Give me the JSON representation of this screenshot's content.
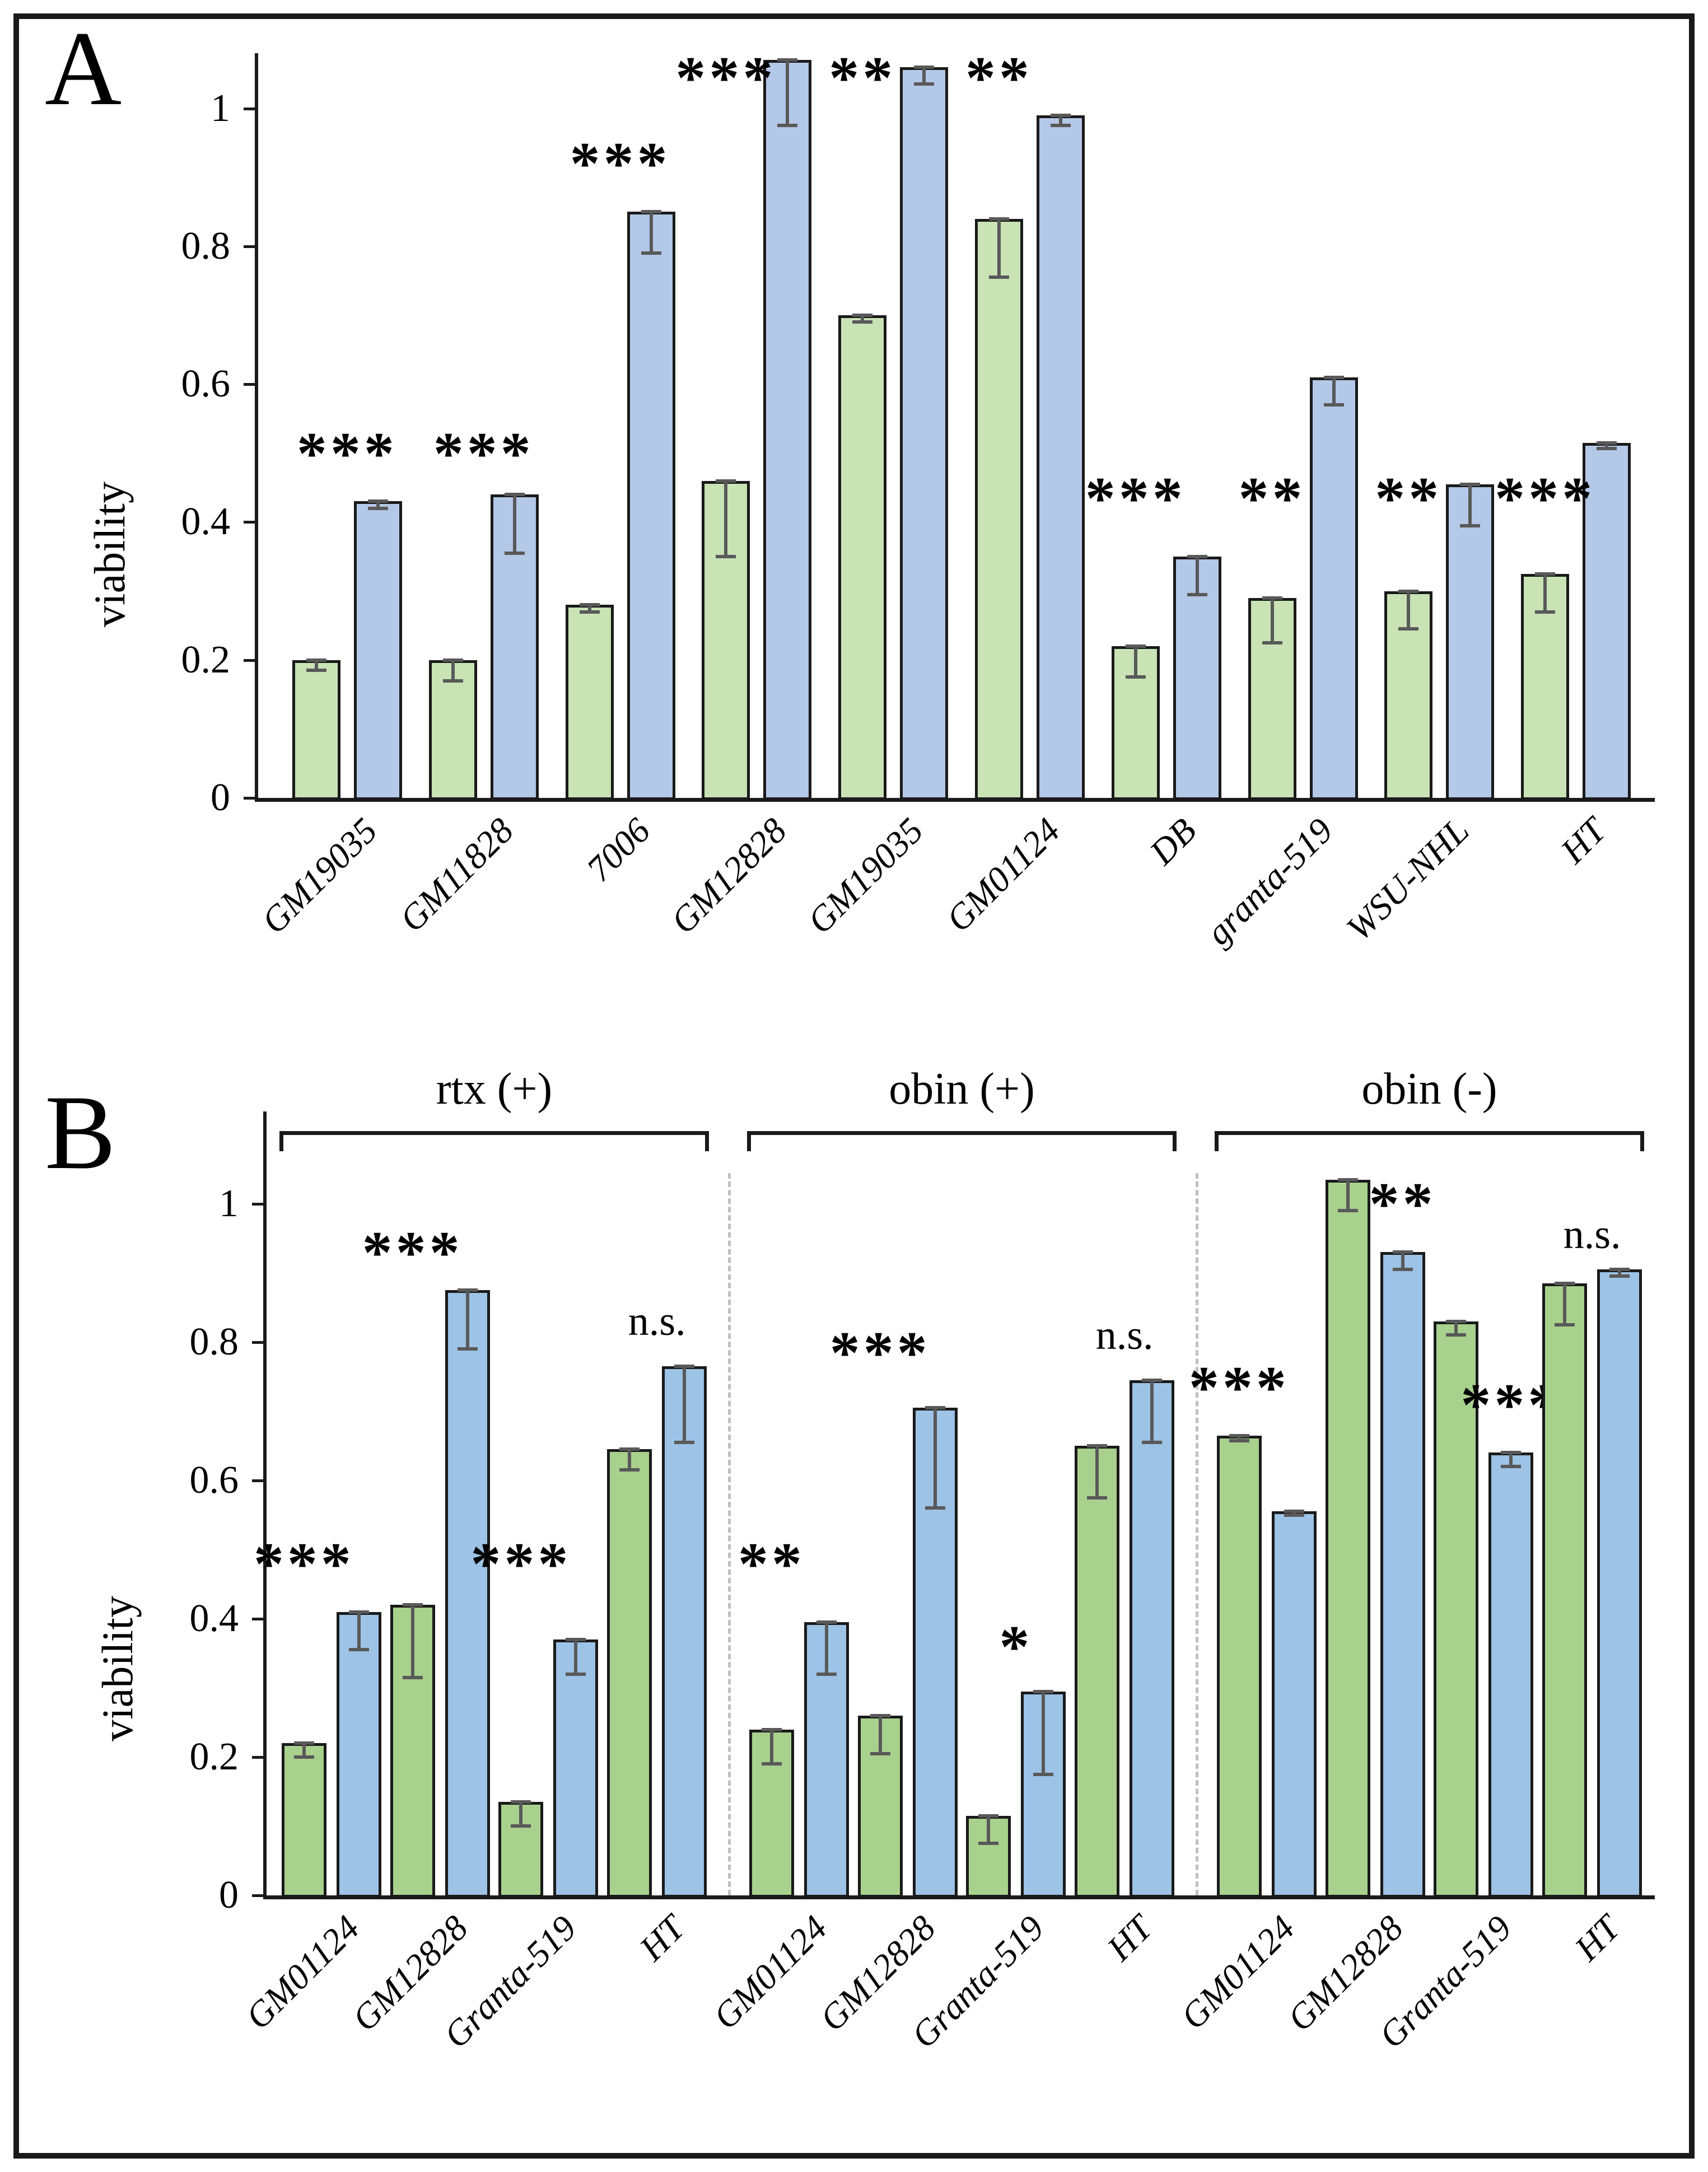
{
  "figure": {
    "panel_a_letter": "A",
    "panel_b_letter": "B",
    "y_axis_label": "viability"
  },
  "chart_data": [
    {
      "type": "bar",
      "panel_label": "A",
      "title": "",
      "xlabel": "",
      "ylabel": "viability",
      "ylim": [
        0,
        1.08
      ],
      "grid": false,
      "legend": "none",
      "yticks": [
        {
          "value": 0,
          "label": "0"
        },
        {
          "value": 0.2,
          "label": "0.2"
        },
        {
          "value": 0.4,
          "label": "0.4"
        },
        {
          "value": 0.6,
          "label": "0.6"
        },
        {
          "value": 0.8,
          "label": "0.8"
        },
        {
          "value": 1,
          "label": "1"
        }
      ],
      "series": [
        {
          "name": "green",
          "color": "#c9e3b5"
        },
        {
          "name": "blue",
          "color": "#b4c8e8"
        }
      ],
      "bar_border_color": "#1a1a1a",
      "error_bar_color": "#595959",
      "groups": [
        {
          "label": "",
          "bars": [
            {
              "category": "GM19035",
              "green": 0.2,
              "green_err": 0.015,
              "blue": 0.43,
              "blue_err": 0.01,
              "sig": "***",
              "sig_y": 0.455,
              "sig_anchor": "pair"
            },
            {
              "category": "GM11828",
              "green": 0.2,
              "green_err": 0.03,
              "blue": 0.44,
              "blue_err": 0.085,
              "sig": "***",
              "sig_y": 0.455,
              "sig_anchor": "pair"
            },
            {
              "category": "7006",
              "green": 0.28,
              "green_err": 0.01,
              "blue": 0.85,
              "blue_err": 0.06,
              "sig": "***",
              "sig_y": 0.875,
              "sig_anchor": "pair"
            },
            {
              "category": "GM12828",
              "green": 0.46,
              "green_err": 0.11,
              "blue": 1.07,
              "blue_err": 0.095,
              "sig": "***",
              "sig_y": 1.0,
              "sig_anchor": "green"
            },
            {
              "category": "GM19035",
              "green": 0.7,
              "green_err": 0.01,
              "blue": 1.06,
              "blue_err": 0.025,
              "sig": "**",
              "sig_y": 1.0,
              "sig_anchor": "green"
            },
            {
              "category": "GM01124",
              "green": 0.84,
              "green_err": 0.085,
              "blue": 0.99,
              "blue_err": 0.015,
              "sig": "**",
              "sig_y": 1.0,
              "sig_anchor": "green"
            },
            {
              "category": "DB",
              "green": 0.22,
              "green_err": 0.045,
              "blue": 0.35,
              "blue_err": 0.055,
              "sig": "***",
              "sig_y": 0.39,
              "sig_anchor": "green"
            },
            {
              "category": "granta-519",
              "green": 0.29,
              "green_err": 0.065,
              "blue": 0.61,
              "blue_err": 0.04,
              "sig": "**",
              "sig_y": 0.39,
              "sig_anchor": "green"
            },
            {
              "category": "WSU-NHL",
              "green": 0.3,
              "green_err": 0.055,
              "blue": 0.455,
              "blue_err": 0.06,
              "sig": "**",
              "sig_y": 0.39,
              "sig_anchor": "green"
            },
            {
              "category": "HT",
              "green": 0.325,
              "green_err": 0.055,
              "blue": 0.515,
              "blue_err": 0.008,
              "sig": "***",
              "sig_y": 0.39,
              "sig_anchor": "green"
            }
          ]
        }
      ]
    },
    {
      "type": "bar",
      "panel_label": "B",
      "title": "",
      "xlabel": "",
      "ylabel": "viability",
      "ylim": [
        0,
        1.05
      ],
      "grid": false,
      "legend": "none",
      "separator_color": "#c0c0c0",
      "yticks": [
        {
          "value": 0,
          "label": "0"
        },
        {
          "value": 0.2,
          "label": "0.2"
        },
        {
          "value": 0.4,
          "label": "0.4"
        },
        {
          "value": 0.6,
          "label": "0.6"
        },
        {
          "value": 0.8,
          "label": "0.8"
        },
        {
          "value": 1,
          "label": "1"
        }
      ],
      "series": [
        {
          "name": "green",
          "color": "#a9d18e"
        },
        {
          "name": "blue",
          "color": "#9dc3e6"
        }
      ],
      "bar_border_color": "#1a1a1a",
      "error_bar_color": "#595959",
      "groups": [
        {
          "label": "rtx (+)",
          "bars": [
            {
              "category": "GM01124",
              "green": 0.22,
              "green_err": 0.02,
              "blue": 0.41,
              "blue_err": 0.055,
              "sig": "***",
              "sig_y": 0.435,
              "sig_anchor": "green"
            },
            {
              "category": "GM12828",
              "green": 0.42,
              "green_err": 0.105,
              "blue": 0.875,
              "blue_err": 0.085,
              "sig": "***",
              "sig_y": 0.885,
              "sig_anchor": "green"
            },
            {
              "category": "Granta-519",
              "green": 0.135,
              "green_err": 0.035,
              "blue": 0.37,
              "blue_err": 0.05,
              "sig": "***",
              "sig_y": 0.435,
              "sig_anchor": "green"
            },
            {
              "category": "HT",
              "green": 0.645,
              "green_err": 0.03,
              "blue": 0.765,
              "blue_err": 0.11,
              "sig": "n.s.",
              "sig_y": 0.8,
              "sig_anchor": "pair"
            }
          ]
        },
        {
          "label": "obin (+)",
          "bars": [
            {
              "category": "GM01124",
              "green": 0.24,
              "green_err": 0.05,
              "blue": 0.395,
              "blue_err": 0.075,
              "sig": "**",
              "sig_y": 0.435,
              "sig_anchor": "green"
            },
            {
              "category": "GM12828",
              "green": 0.26,
              "green_err": 0.055,
              "blue": 0.705,
              "blue_err": 0.145,
              "sig": "***",
              "sig_y": 0.74,
              "sig_anchor": "green"
            },
            {
              "category": "Granta-519",
              "green": 0.115,
              "green_err": 0.04,
              "blue": 0.295,
              "blue_err": 0.12,
              "sig": "*",
              "sig_y": 0.315,
              "sig_anchor": "pair"
            },
            {
              "category": "HT",
              "green": 0.65,
              "green_err": 0.075,
              "blue": 0.745,
              "blue_err": 0.09,
              "sig": "n.s.",
              "sig_y": 0.78,
              "sig_anchor": "pair"
            }
          ]
        },
        {
          "label": "obin (-)",
          "bars": [
            {
              "category": "GM01124",
              "green": 0.665,
              "green_err": 0.008,
              "blue": 0.555,
              "blue_err": 0.005,
              "sig": "***",
              "sig_y": 0.69,
              "sig_anchor": "green"
            },
            {
              "category": "GM12828",
              "green": 1.035,
              "green_err": 0.045,
              "blue": 0.93,
              "blue_err": 0.025,
              "sig": "**",
              "sig_y": 0.955,
              "sig_anchor": "blue"
            },
            {
              "category": "Granta-519",
              "green": 0.83,
              "green_err": 0.02,
              "blue": 0.64,
              "blue_err": 0.02,
              "sig": "***",
              "sig_y": 0.665,
              "sig_anchor": "blue"
            },
            {
              "category": "HT",
              "green": 0.885,
              "green_err": 0.06,
              "blue": 0.905,
              "blue_err": 0.01,
              "sig": "n.s.",
              "sig_y": 0.925,
              "sig_anchor": "pair"
            }
          ]
        }
      ]
    }
  ]
}
